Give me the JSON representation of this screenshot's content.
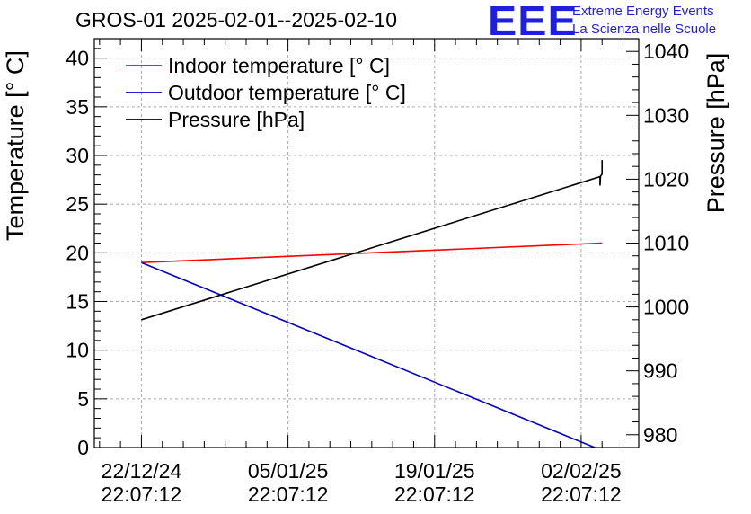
{
  "header": {
    "title": "GROS-01 2025-02-01--2025-02-10",
    "logo_text": "EEE",
    "logo_line1": "Extreme Energy Events",
    "logo_line2": "La Scienza nelle Scuole"
  },
  "chart_data": {
    "type": "line",
    "title": "GROS-01 2025-02-01--2025-02-10",
    "ylabel": "Temperature [° C]",
    "y2label": "Pressure [hPa]",
    "ylim": [
      0,
      42
    ],
    "y2lim": [
      978,
      1042
    ],
    "xlim": [
      -4.5,
      47.5
    ],
    "grid": true,
    "legend_position": "top-left",
    "x_ticks": [
      {
        "value": 0,
        "line1": "22/12/24",
        "line2": "22:07:12"
      },
      {
        "value": 14,
        "line1": "05/01/25",
        "line2": "22:07:12"
      },
      {
        "value": 28,
        "line1": "19/01/25",
        "line2": "22:07:12"
      },
      {
        "value": 42,
        "line1": "02/02/25",
        "line2": "22:07:12"
      }
    ],
    "y_ticks": [
      0,
      5,
      10,
      15,
      20,
      25,
      30,
      35,
      40
    ],
    "y2_ticks": [
      980,
      990,
      1000,
      1010,
      1020,
      1030,
      1040
    ],
    "series": [
      {
        "name": "Indoor temperature [° C]",
        "color": "#ff0000",
        "axis": "left",
        "x": [
          0,
          44
        ],
        "values": [
          19.0,
          21.0
        ]
      },
      {
        "name": "Outdoor temperature [° C]",
        "color": "#0000cc",
        "axis": "left",
        "x": [
          0,
          43.3
        ],
        "values": [
          19.0,
          0.0
        ]
      },
      {
        "name": "Pressure [hPa]",
        "color": "#000000",
        "axis": "right",
        "x": [
          0,
          43.8,
          43.8,
          43.85,
          44.0,
          44.0
        ],
        "values": [
          998.0,
          1020.4,
          1019.0,
          1020.5,
          1020.8,
          1023.0
        ]
      }
    ]
  }
}
